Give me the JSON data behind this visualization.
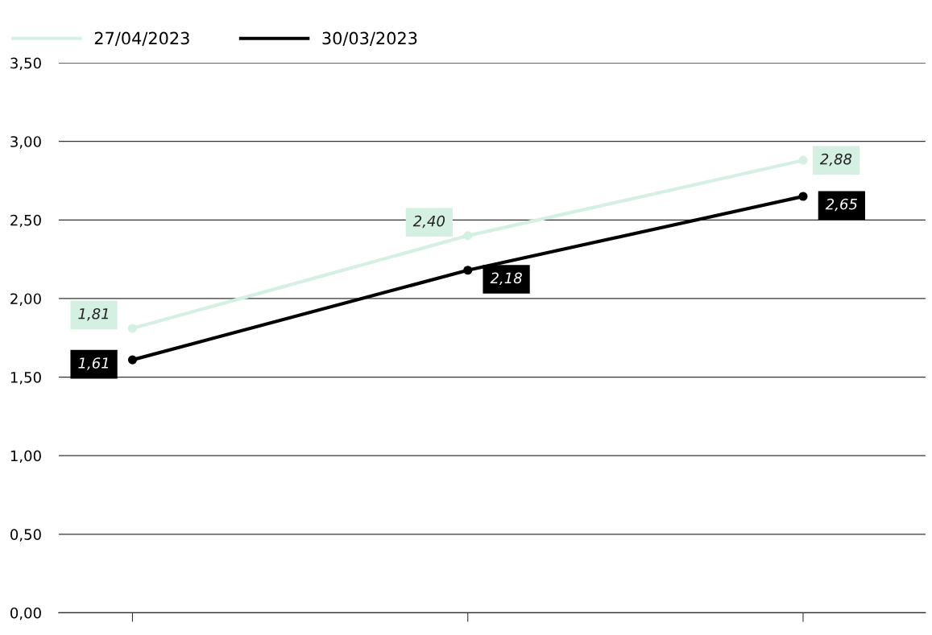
{
  "chart_data": {
    "type": "line",
    "categories": [
      null,
      null,
      null
    ],
    "series": [
      {
        "name": "27/04/2023",
        "color": "#d4f0e3",
        "values": [
          1.81,
          2.4,
          2.88
        ],
        "value_labels": [
          "1,81",
          "2,40",
          "2,88"
        ]
      },
      {
        "name": "30/03/2023",
        "color": "#000000",
        "values": [
          1.61,
          2.18,
          2.65
        ],
        "value_labels": [
          "1,61",
          "2,18",
          "2,65"
        ]
      }
    ],
    "ylim": [
      0,
      3.5
    ],
    "yticks": [
      {
        "value": 0,
        "label": "0,00"
      },
      {
        "value": 0.5,
        "label": "0,50"
      },
      {
        "value": 1,
        "label": "1,00"
      },
      {
        "value": 1.5,
        "label": "1,50"
      },
      {
        "value": 2,
        "label": "2,00"
      },
      {
        "value": 2.5,
        "label": "2,50"
      },
      {
        "value": 3,
        "label": "3,00"
      },
      {
        "value": 3.5,
        "label": "3,50"
      }
    ],
    "grid": "y",
    "legend": "top left",
    "marker": "circle",
    "line_style": "solid"
  }
}
